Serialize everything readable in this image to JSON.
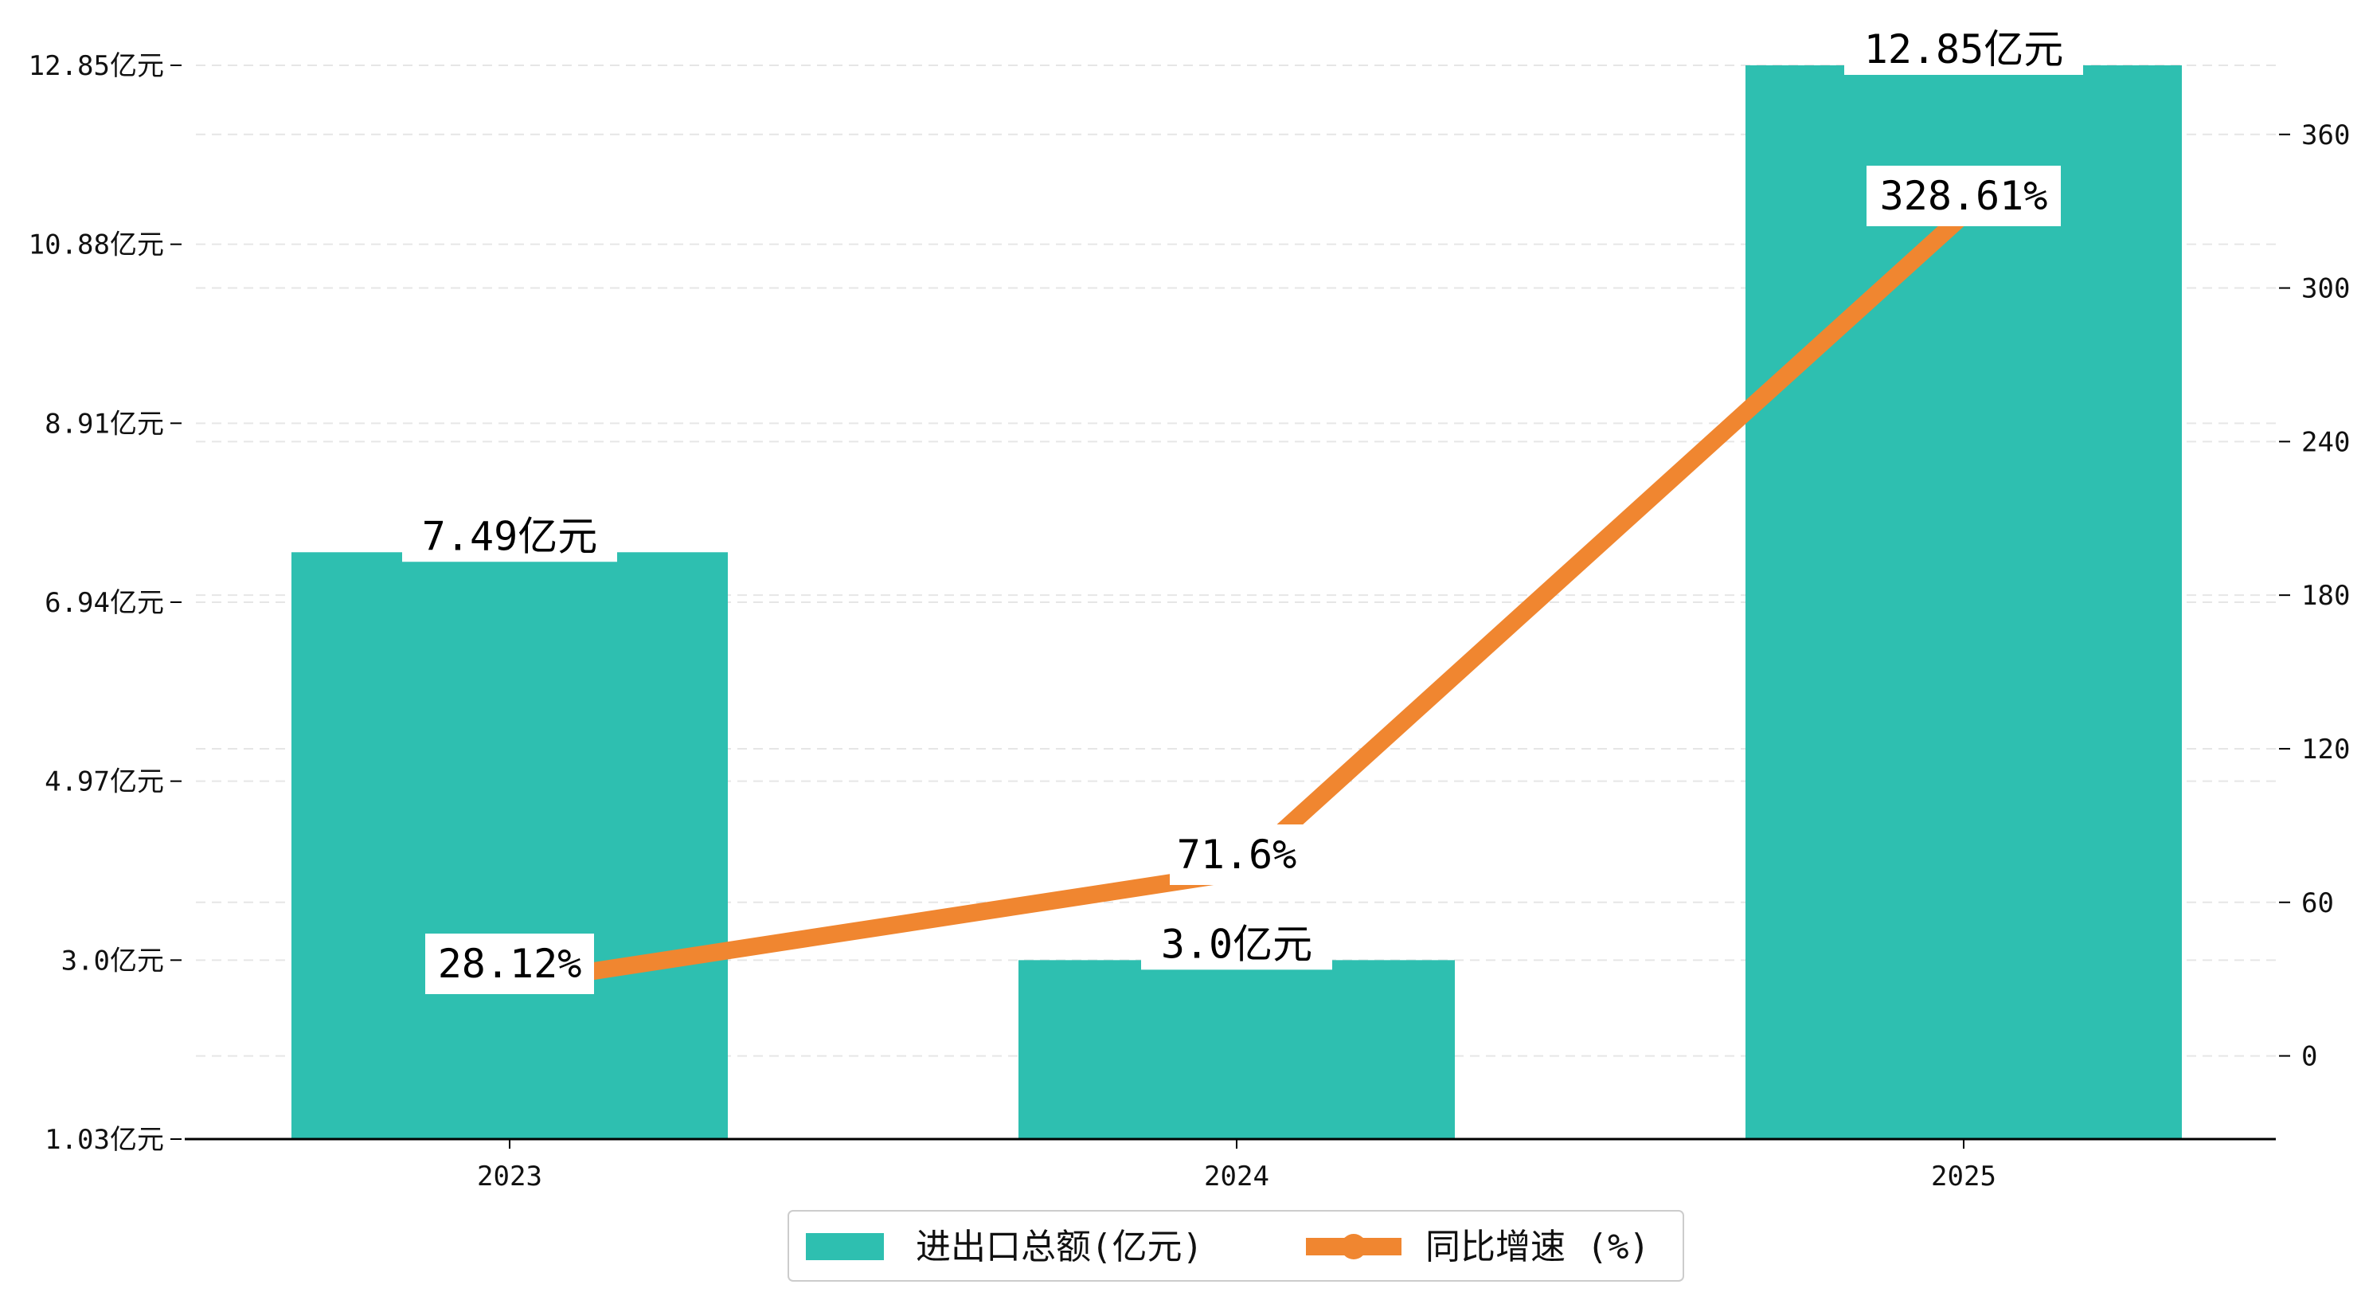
{
  "colors": {
    "bar": "#2ebfb0",
    "line": "#f08630",
    "grid": "#e6e6e6",
    "axis": "#000000",
    "text": "#111111",
    "label_bg": "#ffffff",
    "legend_border": "#cccccc"
  },
  "chart_data": {
    "type": "bar",
    "categories": [
      "2023",
      "2024",
      "2025"
    ],
    "series": [
      {
        "name": "进出口总额(亿元)",
        "type": "bar",
        "axis": "left",
        "values": [
          7.49,
          3.0,
          12.85
        ],
        "labels": [
          "7.49亿元",
          "3.0亿元",
          "12.85亿元"
        ]
      },
      {
        "name": "同比增速 (%)",
        "type": "line",
        "axis": "right",
        "values": [
          28.12,
          71.6,
          328.61
        ],
        "labels": [
          "28.12%",
          "71.6%",
          "328.61%"
        ]
      }
    ],
    "left_axis": {
      "ylim": [
        1.03,
        12.85
      ],
      "ticks": [
        1.03,
        3.0,
        4.97,
        6.94,
        8.91,
        10.88,
        12.85
      ],
      "tick_labels": [
        "1.03亿元",
        "3.0亿元",
        "4.97亿元",
        "6.94亿元",
        "8.91亿元",
        "10.88亿元",
        "12.85亿元"
      ]
    },
    "right_axis": {
      "ylim": [
        -32.5,
        387
      ],
      "ticks": [
        0,
        60,
        120,
        180,
        240,
        300,
        360
      ],
      "tick_labels": [
        "0",
        "60",
        "120",
        "180",
        "240",
        "300",
        "360"
      ]
    },
    "grid": true,
    "legend_position": "bottom-center"
  }
}
